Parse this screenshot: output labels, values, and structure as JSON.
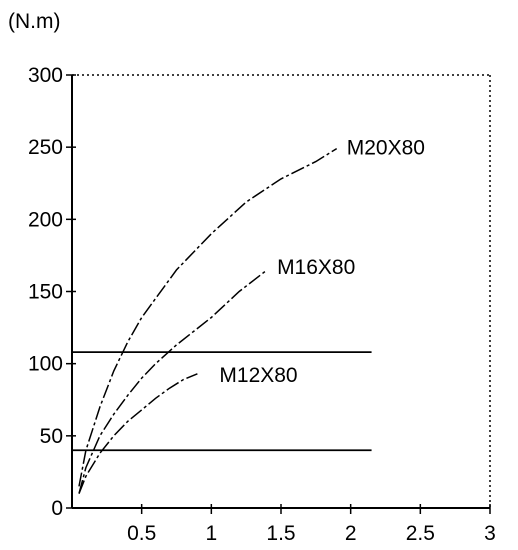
{
  "chart_data": {
    "type": "line",
    "unit_label": "(N.m)",
    "xlim": [
      0,
      3
    ],
    "ylim": [
      0,
      300
    ],
    "x_ticks": [
      {
        "value": 0.5,
        "label": "0.5"
      },
      {
        "value": 1,
        "label": "1"
      },
      {
        "value": 1.5,
        "label": "1.5"
      },
      {
        "value": 2,
        "label": "2"
      },
      {
        "value": 2.5,
        "label": "2.5"
      },
      {
        "value": 3,
        "label": "3"
      }
    ],
    "y_ticks": [
      {
        "value": 0,
        "label": "0"
      },
      {
        "value": 50,
        "label": "50"
      },
      {
        "value": 100,
        "label": "100"
      },
      {
        "value": 150,
        "label": "150"
      },
      {
        "value": 200,
        "label": "200"
      },
      {
        "value": 250,
        "label": "250"
      },
      {
        "value": 300,
        "label": "300"
      }
    ],
    "series": [
      {
        "name": "M20X80",
        "x": [
          0.05,
          0.1,
          0.2,
          0.3,
          0.4,
          0.5,
          0.75,
          1.0,
          1.25,
          1.5,
          1.75,
          1.9
        ],
        "y": [
          15,
          40,
          70,
          95,
          115,
          132,
          165,
          190,
          212,
          228,
          240,
          249
        ]
      },
      {
        "name": "M16X80",
        "x": [
          0.05,
          0.1,
          0.2,
          0.3,
          0.4,
          0.5,
          0.6,
          0.75,
          1.0,
          1.2,
          1.4
        ],
        "y": [
          10,
          28,
          50,
          65,
          78,
          90,
          100,
          113,
          132,
          150,
          165
        ]
      },
      {
        "name": "M12X80",
        "x": [
          0.05,
          0.1,
          0.2,
          0.3,
          0.4,
          0.5,
          0.6,
          0.7,
          0.8,
          0.9
        ],
        "y": [
          10,
          22,
          38,
          50,
          60,
          68,
          76,
          83,
          89,
          93
        ]
      }
    ],
    "reference_lines": [
      {
        "y": 108
      },
      {
        "y": 40
      }
    ]
  }
}
